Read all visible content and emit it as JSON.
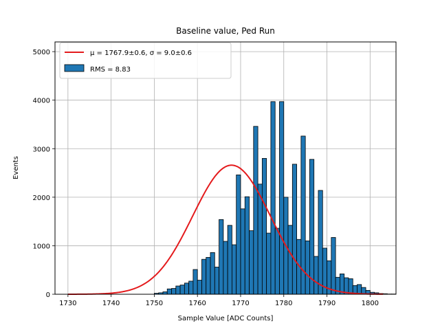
{
  "chart_data": {
    "type": "bar",
    "title": "Baseline value, Ped Run",
    "xlabel": "Sample Value [ADC Counts]",
    "ylabel": "Events",
    "xlim": [
      1727,
      1806
    ],
    "ylim": [
      0,
      5200
    ],
    "xticks": [
      1730,
      1740,
      1750,
      1760,
      1770,
      1780,
      1790,
      1800
    ],
    "yticks": [
      0,
      1000,
      2000,
      3000,
      4000,
      5000
    ],
    "grid": true,
    "legend_position": "top-left",
    "bar_color": "#1f77b4",
    "fit_color": "#e41a1c",
    "bin_start": 1730,
    "bin_width": 1,
    "histogram_counts": [
      0,
      0,
      0,
      0,
      0,
      0,
      0,
      0,
      0,
      0,
      0,
      0,
      0,
      0,
      0,
      0,
      0,
      0,
      0,
      0,
      20,
      30,
      50,
      110,
      120,
      170,
      190,
      230,
      270,
      510,
      290,
      720,
      760,
      860,
      560,
      1540,
      1090,
      1420,
      1020,
      2460,
      1760,
      2010,
      1310,
      3460,
      2270,
      2800,
      1260,
      3970,
      1360,
      3970,
      2000,
      1420,
      2680,
      1130,
      3260,
      1100,
      2780,
      780,
      2140,
      950,
      690,
      1170,
      350,
      420,
      340,
      320,
      180,
      200,
      140,
      80,
      40,
      30,
      15,
      10,
      5,
      5,
      0,
      0,
      0,
      0,
      0,
      0,
      0
    ],
    "fit": {
      "label": "μ = 1767.9±0.6, σ = 9.0±0.6",
      "mu": 1767.9,
      "sigma": 9.0,
      "amplitude": 2660,
      "x_range": [
        1730,
        1803
      ]
    },
    "legend": [
      {
        "name": "μ = 1767.9±0.6, σ = 9.0±0.6",
        "kind": "line"
      },
      {
        "name": "RMS = 8.83",
        "kind": "bar"
      }
    ]
  }
}
